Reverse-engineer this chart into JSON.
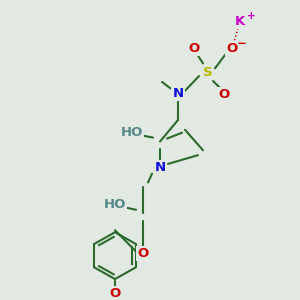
{
  "bg_color": "#e2e8e2",
  "bond_color": "#2a6a2a",
  "bond_width": 1.5,
  "atom_colors": {
    "N": "#1010dd",
    "O": "#cc0000",
    "S": "#b8b800",
    "K": "#cc00cc",
    "HO": "#558888"
  },
  "font_size": 9.5,
  "small_font": 7.5
}
